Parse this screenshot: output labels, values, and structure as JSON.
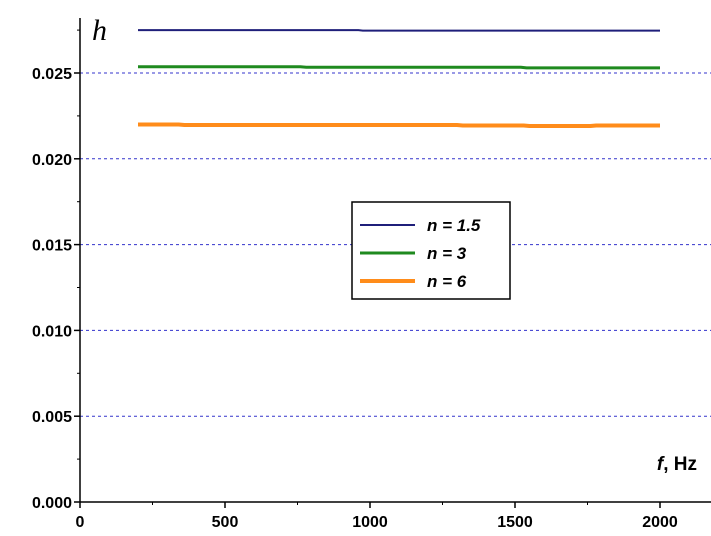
{
  "chart_data": {
    "type": "line",
    "title": "",
    "ylabel": "h",
    "xlabel_var": "f",
    "xlabel_unit": ", Hz",
    "xlim": [
      0,
      2000
    ],
    "ylim": [
      0,
      0.0275
    ],
    "xticks": [
      0,
      500,
      1000,
      1500,
      2000
    ],
    "xtick_labels": [
      "0",
      "500",
      "1000",
      "1500",
      "2000"
    ],
    "yticks": [
      0,
      0.005,
      0.01,
      0.015,
      0.02,
      0.025
    ],
    "ytick_labels": [
      "0.000",
      "0.005",
      "0.010",
      "0.015",
      "0.020",
      "0.025"
    ],
    "grid": "horizontal dashed",
    "legend_position": "center",
    "series": [
      {
        "name": "n = 1.5",
        "color": "#1f1f7a",
        "line_width": 2,
        "x": [
          200,
          500,
          960,
          975,
          1500,
          2000
        ],
        "y": [
          0.0275,
          0.0275,
          0.0275,
          0.02747,
          0.02747,
          0.02747
        ]
      },
      {
        "name": "n = 3",
        "color": "#1f8a1f",
        "line_width": 3,
        "x": [
          200,
          760,
          780,
          1520,
          1540,
          2000
        ],
        "y": [
          0.02536,
          0.02536,
          0.02533,
          0.02533,
          0.0253,
          0.0253
        ]
      },
      {
        "name": "n = 6",
        "color": "#ff8c1a",
        "line_width": 4,
        "x": [
          200,
          340,
          360,
          1300,
          1320,
          1530,
          1550,
          1760,
          1780,
          2000
        ],
        "y": [
          0.022,
          0.022,
          0.02197,
          0.02197,
          0.02194,
          0.02194,
          0.02191,
          0.02191,
          0.02194,
          0.02194
        ]
      }
    ]
  }
}
